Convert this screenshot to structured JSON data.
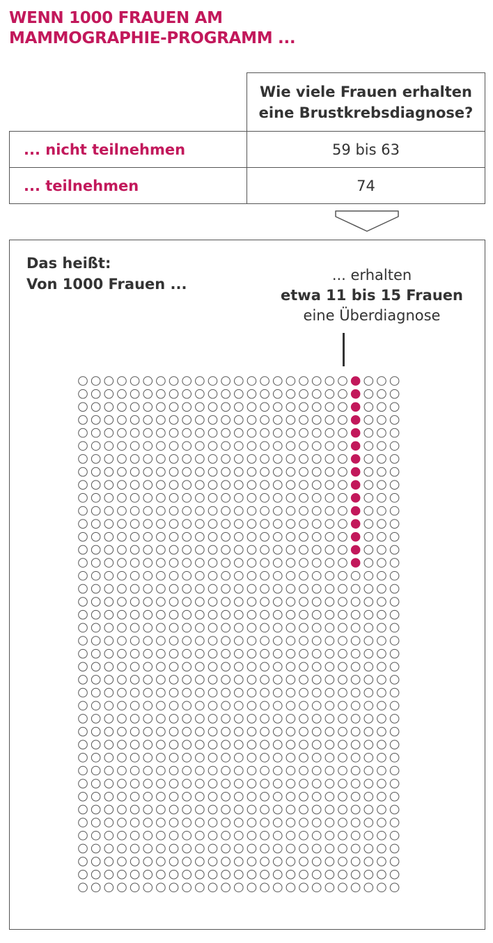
{
  "title": {
    "line1": "WENN 1000 FRAUEN AM",
    "line2": "MAMMOGRAPHIE-PROGRAMM ..."
  },
  "table": {
    "header_line1": "Wie viele Frauen erhalten",
    "header_line2": "eine Brustkrebsdiagnose?",
    "rows": [
      {
        "label": "... nicht teilnehmen",
        "value": "59 bis 63"
      },
      {
        "label": "... teilnehmen",
        "value": "74"
      }
    ]
  },
  "panel": {
    "intro_line1": "Das heißt:",
    "intro_line2": "Von 1000 Frauen ...",
    "callout_line1": "... erhalten",
    "callout_line2": "etwa 11 bis 15 Frauen",
    "callout_line3": "eine Überdiagnose"
  },
  "dot_grid": {
    "total": 1000,
    "columns": 25,
    "rows": 40,
    "highlighted_column": 21,
    "highlighted_count": 15
  },
  "colors": {
    "accent": "#c2185b",
    "text": "#333333",
    "border": "#555555",
    "dot_outline": "#555555"
  }
}
